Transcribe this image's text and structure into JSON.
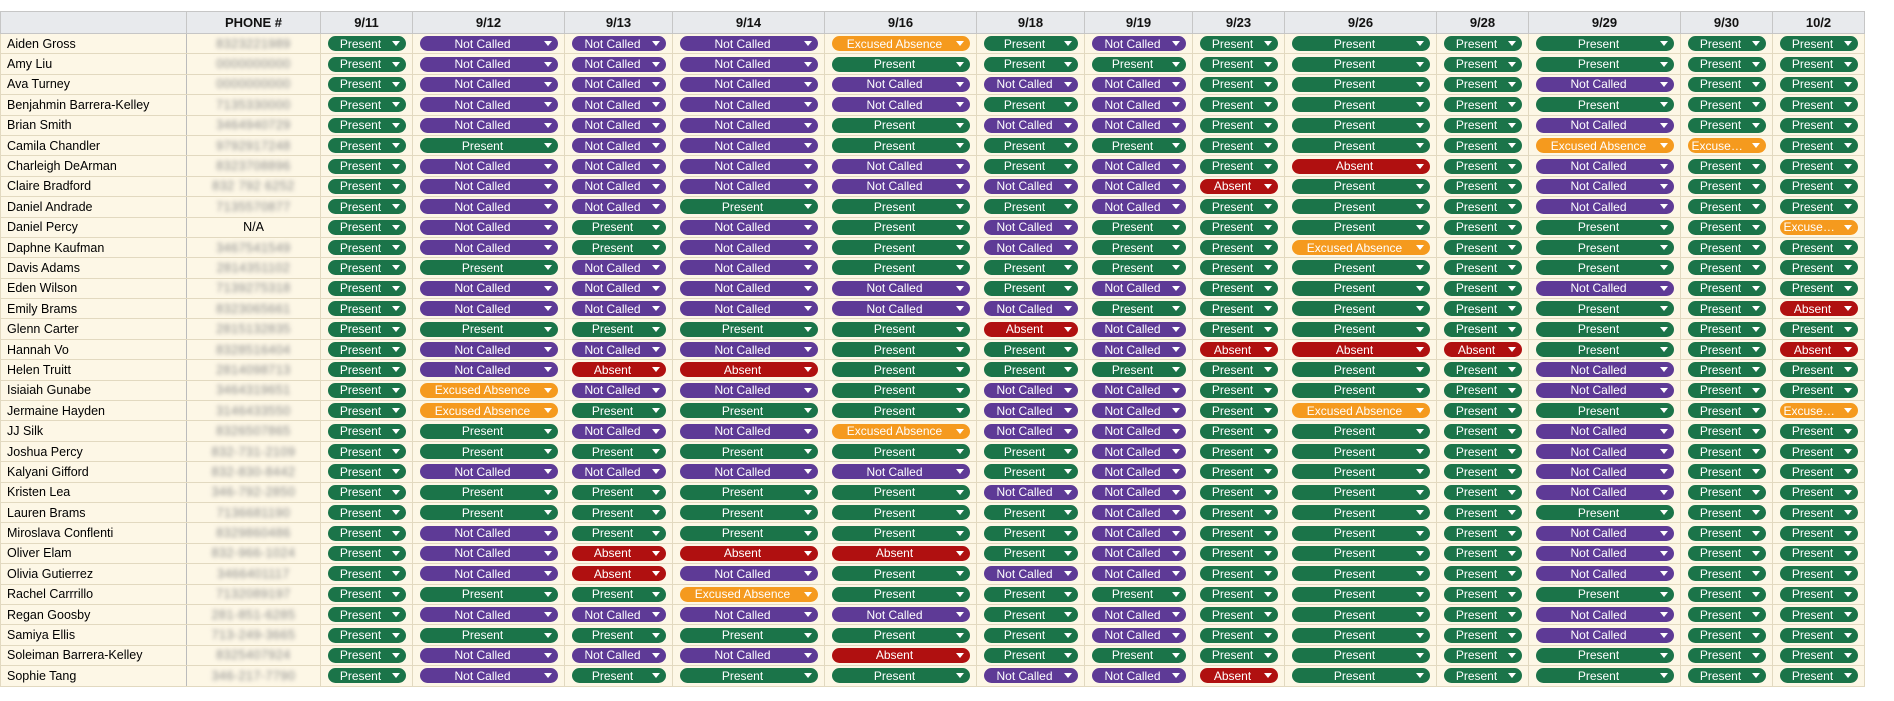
{
  "header": {
    "name_col": "",
    "phone_col": "PHONE #",
    "dates": [
      "9/11",
      "9/12",
      "9/13",
      "9/14",
      "9/16",
      "9/18",
      "9/19",
      "9/23",
      "9/26",
      "9/28",
      "9/29",
      "9/30",
      "10/2"
    ]
  },
  "status_colors": {
    "Present": "#1b7449",
    "Not Called": "#5e3a96",
    "Absent": "#b01010",
    "Excused Absence": "#f59a1e"
  },
  "rows": [
    {
      "name": "Aiden Gross",
      "phone": "8323221989",
      "statuses": [
        "Present",
        "Not Called",
        "Not Called",
        "Not Called",
        "Excused Absence",
        "Present",
        "Not Called",
        "Present",
        "Present",
        "Present",
        "Present",
        "Present",
        "Present"
      ]
    },
    {
      "name": "Amy Liu",
      "phone": "0000000000",
      "statuses": [
        "Present",
        "Not Called",
        "Not Called",
        "Not Called",
        "Present",
        "Present",
        "Present",
        "Present",
        "Present",
        "Present",
        "Present",
        "Present",
        "Present"
      ]
    },
    {
      "name": "Ava Turney",
      "phone": "0000000000",
      "statuses": [
        "Present",
        "Not Called",
        "Not Called",
        "Not Called",
        "Not Called",
        "Not Called",
        "Not Called",
        "Present",
        "Present",
        "Present",
        "Not Called",
        "Present",
        "Present"
      ]
    },
    {
      "name": "Benjahmin Barrera-Kelley",
      "phone": "7135330000",
      "statuses": [
        "Present",
        "Not Called",
        "Not Called",
        "Not Called",
        "Not Called",
        "Present",
        "Not Called",
        "Present",
        "Present",
        "Present",
        "Present",
        "Present",
        "Present"
      ]
    },
    {
      "name": "Brian Smith",
      "phone": "3464940729",
      "statuses": [
        "Present",
        "Not Called",
        "Not Called",
        "Not Called",
        "Present",
        "Not Called",
        "Not Called",
        "Present",
        "Present",
        "Present",
        "Not Called",
        "Present",
        "Present"
      ]
    },
    {
      "name": "Camila Chandler",
      "phone": "9792917248",
      "statuses": [
        "Present",
        "Present",
        "Not Called",
        "Not Called",
        "Present",
        "Present",
        "Present",
        "Present",
        "Present",
        "Present",
        "Excused Absence",
        "Excused Absence",
        "Present"
      ]
    },
    {
      "name": "Charleigh DeArman",
      "phone": "8323708896",
      "statuses": [
        "Present",
        "Not Called",
        "Not Called",
        "Not Called",
        "Not Called",
        "Present",
        "Not Called",
        "Present",
        "Absent",
        "Present",
        "Not Called",
        "Present",
        "Present"
      ]
    },
    {
      "name": "Claire Bradford",
      "phone": "832 792 6252",
      "statuses": [
        "Present",
        "Not Called",
        "Not Called",
        "Not Called",
        "Not Called",
        "Not Called",
        "Not Called",
        "Absent",
        "Present",
        "Present",
        "Not Called",
        "Present",
        "Present"
      ]
    },
    {
      "name": "Daniel Andrade",
      "phone": "7135570877",
      "statuses": [
        "Present",
        "Not Called",
        "Not Called",
        "Present",
        "Present",
        "Present",
        "Not Called",
        "Present",
        "Present",
        "Present",
        "Not Called",
        "Present",
        "Present"
      ]
    },
    {
      "name": "Daniel Percy",
      "phone": "N/A",
      "statuses": [
        "Present",
        "Not Called",
        "Present",
        "Not Called",
        "Present",
        "Not Called",
        "Present",
        "Present",
        "Present",
        "Present",
        "Present",
        "Present",
        "Excused Absence"
      ]
    },
    {
      "name": "Daphne Kaufman",
      "phone": "3467541549",
      "statuses": [
        "Present",
        "Not Called",
        "Present",
        "Not Called",
        "Present",
        "Not Called",
        "Present",
        "Present",
        "Excused Absence",
        "Present",
        "Present",
        "Present",
        "Present"
      ]
    },
    {
      "name": "Davis Adams",
      "phone": "2814351102",
      "statuses": [
        "Present",
        "Present",
        "Not Called",
        "Not Called",
        "Present",
        "Present",
        "Present",
        "Present",
        "Present",
        "Present",
        "Present",
        "Present",
        "Present"
      ]
    },
    {
      "name": "Eden Wilson",
      "phone": "7139275318",
      "statuses": [
        "Present",
        "Not Called",
        "Not Called",
        "Not Called",
        "Not Called",
        "Present",
        "Not Called",
        "Present",
        "Present",
        "Present",
        "Not Called",
        "Present",
        "Present"
      ]
    },
    {
      "name": "Emily Brams",
      "phone": "8323065661",
      "statuses": [
        "Present",
        "Not Called",
        "Not Called",
        "Not Called",
        "Not Called",
        "Not Called",
        "Present",
        "Present",
        "Present",
        "Present",
        "Present",
        "Present",
        "Absent"
      ]
    },
    {
      "name": "Glenn Carter",
      "phone": "2815132835",
      "statuses": [
        "Present",
        "Present",
        "Present",
        "Present",
        "Present",
        "Absent",
        "Not Called",
        "Present",
        "Present",
        "Present",
        "Present",
        "Present",
        "Present"
      ]
    },
    {
      "name": "Hannah Vo",
      "phone": "8328516404",
      "statuses": [
        "Present",
        "Not Called",
        "Not Called",
        "Not Called",
        "Present",
        "Present",
        "Not Called",
        "Absent",
        "Absent",
        "Absent",
        "Present",
        "Present",
        "Absent"
      ]
    },
    {
      "name": "Helen Truitt",
      "phone": "2814098713",
      "statuses": [
        "Present",
        "Not Called",
        "Absent",
        "Absent",
        "Present",
        "Present",
        "Present",
        "Present",
        "Present",
        "Present",
        "Not Called",
        "Present",
        "Present"
      ]
    },
    {
      "name": "Isiaiah Gunabe",
      "phone": "3464319651",
      "statuses": [
        "Present",
        "Excused Absence",
        "Not Called",
        "Not Called",
        "Present",
        "Not Called",
        "Not Called",
        "Present",
        "Present",
        "Present",
        "Not Called",
        "Present",
        "Present"
      ]
    },
    {
      "name": "Jermaine Hayden",
      "phone": "3146433550",
      "statuses": [
        "Present",
        "Excused Absence",
        "Present",
        "Present",
        "Present",
        "Not Called",
        "Not Called",
        "Present",
        "Excused Absence",
        "Present",
        "Present",
        "Present",
        "Excused Absence"
      ]
    },
    {
      "name": "JJ Silk",
      "phone": "8326507865",
      "statuses": [
        "Present",
        "Present",
        "Not Called",
        "Not Called",
        "Excused Absence",
        "Not Called",
        "Not Called",
        "Present",
        "Present",
        "Present",
        "Not Called",
        "Present",
        "Present"
      ]
    },
    {
      "name": "Joshua Percy",
      "phone": "832-731-2109",
      "statuses": [
        "Present",
        "Present",
        "Present",
        "Present",
        "Present",
        "Present",
        "Not Called",
        "Present",
        "Present",
        "Present",
        "Not Called",
        "Present",
        "Present"
      ]
    },
    {
      "name": "Kalyani Gifford",
      "phone": "832-830-8442",
      "statuses": [
        "Present",
        "Not Called",
        "Not Called",
        "Not Called",
        "Not Called",
        "Present",
        "Not Called",
        "Present",
        "Present",
        "Present",
        "Not Called",
        "Present",
        "Present"
      ]
    },
    {
      "name": "Kristen Lea",
      "phone": "346-792-2850",
      "statuses": [
        "Present",
        "Present",
        "Present",
        "Present",
        "Present",
        "Not Called",
        "Not Called",
        "Present",
        "Present",
        "Present",
        "Not Called",
        "Present",
        "Present"
      ]
    },
    {
      "name": "Lauren Brams",
      "phone": "7136681190",
      "statuses": [
        "Present",
        "Present",
        "Present",
        "Present",
        "Present",
        "Present",
        "Not Called",
        "Present",
        "Present",
        "Present",
        "Present",
        "Present",
        "Present"
      ]
    },
    {
      "name": "Miroslava Conflenti",
      "phone": "8329860486",
      "statuses": [
        "Present",
        "Not Called",
        "Present",
        "Present",
        "Present",
        "Present",
        "Not Called",
        "Present",
        "Present",
        "Present",
        "Not Called",
        "Present",
        "Present"
      ]
    },
    {
      "name": "Oliver Elam",
      "phone": "832-966-1024",
      "statuses": [
        "Present",
        "Not Called",
        "Absent",
        "Absent",
        "Absent",
        "Present",
        "Not Called",
        "Present",
        "Present",
        "Present",
        "Not Called",
        "Present",
        "Present"
      ]
    },
    {
      "name": "Olivia Gutierrez",
      "phone": "3466401117",
      "statuses": [
        "Present",
        "Not Called",
        "Absent",
        "Not Called",
        "Present",
        "Not Called",
        "Not Called",
        "Present",
        "Present",
        "Present",
        "Not Called",
        "Present",
        "Present"
      ]
    },
    {
      "name": "Rachel Carrrillo",
      "phone": "7132089197",
      "statuses": [
        "Present",
        "Present",
        "Present",
        "Excused Absence",
        "Present",
        "Present",
        "Present",
        "Present",
        "Present",
        "Present",
        "Present",
        "Present",
        "Present"
      ]
    },
    {
      "name": "Regan Goosby",
      "phone": "281-851-6285",
      "statuses": [
        "Present",
        "Not Called",
        "Not Called",
        "Not Called",
        "Not Called",
        "Present",
        "Not Called",
        "Present",
        "Present",
        "Present",
        "Not Called",
        "Present",
        "Present"
      ]
    },
    {
      "name": "Samiya Ellis",
      "phone": "713-249-3665",
      "statuses": [
        "Present",
        "Present",
        "Present",
        "Present",
        "Present",
        "Present",
        "Not Called",
        "Present",
        "Present",
        "Present",
        "Not Called",
        "Present",
        "Present"
      ]
    },
    {
      "name": "Soleiman Barrera-Kelley",
      "phone": "8325407924",
      "statuses": [
        "Present",
        "Not Called",
        "Not Called",
        "Not Called",
        "Absent",
        "Present",
        "Present",
        "Present",
        "Present",
        "Present",
        "Present",
        "Present",
        "Present"
      ]
    },
    {
      "name": "Sophie Tang",
      "phone": "346-217-7790",
      "statuses": [
        "Present",
        "Not Called",
        "Present",
        "Present",
        "Present",
        "Not Called",
        "Not Called",
        "Absent",
        "Present",
        "Present",
        "Present",
        "Present",
        "Present"
      ]
    }
  ]
}
